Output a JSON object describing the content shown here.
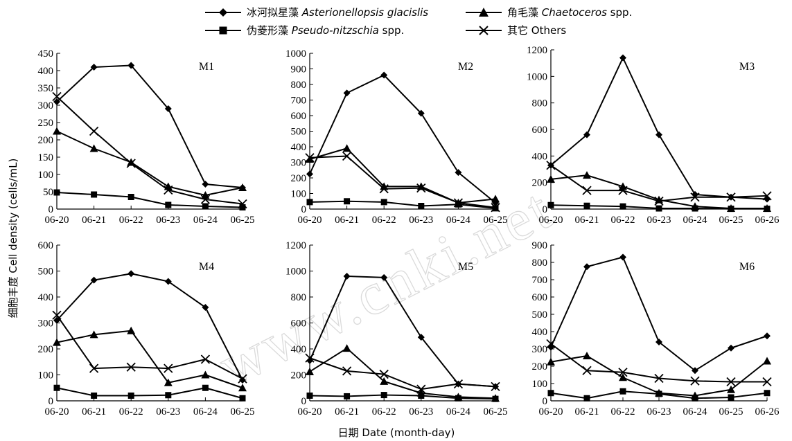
{
  "figure": {
    "ylabel": "细胞丰度 Cell density (cells/mL)",
    "xlabel": "日期 Date (month-day)",
    "legend": [
      {
        "zh": "冰河拟星藻",
        "latin": "Asterionellopsis glacislis",
        "suffix": "",
        "marker": "diamond"
      },
      {
        "zh": "角毛藻",
        "latin": "Chaetoceros",
        "suffix": " spp.",
        "marker": "triangle"
      },
      {
        "zh": "伪菱形藻",
        "latin": "Pseudo-nitzschia",
        "suffix": " spp.",
        "marker": "square"
      },
      {
        "zh": "其它",
        "latin": "",
        "suffix": "Others",
        "marker": "x"
      }
    ],
    "watermark": "www.cnki.net"
  },
  "chart_data": [
    {
      "type": "line",
      "title": "M1",
      "x": [
        "06-20",
        "06-21",
        "06-22",
        "06-23",
        "06-24",
        "06-25"
      ],
      "ylim": [
        0,
        450
      ],
      "yticks": [
        0,
        50,
        100,
        150,
        200,
        250,
        300,
        350,
        400,
        450
      ],
      "series": [
        {
          "name": "冰河拟星藻 Asterionellopsis glacislis",
          "marker": "diamond",
          "values": [
            310,
            410,
            415,
            290,
            72,
            62
          ]
        },
        {
          "name": "角毛藻 Chaetoceros spp.",
          "marker": "triangle",
          "values": [
            225,
            175,
            135,
            65,
            40,
            62
          ]
        },
        {
          "name": "伪菱形藻 Pseudo-nitzschia spp.",
          "marker": "square",
          "values": [
            48,
            42,
            35,
            12,
            8,
            5
          ]
        },
        {
          "name": "其它 Others",
          "marker": "x",
          "values": [
            325,
            225,
            132,
            55,
            28,
            15
          ]
        }
      ]
    },
    {
      "type": "line",
      "title": "M2",
      "x": [
        "06-20",
        "06-21",
        "06-22",
        "06-23",
        "06-24",
        "06-25"
      ],
      "ylim": [
        0,
        1000
      ],
      "yticks": [
        0,
        100,
        200,
        300,
        400,
        500,
        600,
        700,
        800,
        900,
        1000
      ],
      "series": [
        {
          "name": "冰河拟星藻 Asterionellopsis glacislis",
          "marker": "diamond",
          "values": [
            225,
            745,
            860,
            615,
            235,
            40
          ]
        },
        {
          "name": "角毛藻 Chaetoceros spp.",
          "marker": "triangle",
          "values": [
            320,
            390,
            145,
            145,
            40,
            65
          ]
        },
        {
          "name": "伪菱形藻 Pseudo-nitzschia spp.",
          "marker": "square",
          "values": [
            45,
            50,
            45,
            20,
            30,
            5
          ]
        },
        {
          "name": "其它 Others",
          "marker": "x",
          "values": [
            330,
            340,
            130,
            135,
            40,
            10
          ]
        }
      ]
    },
    {
      "type": "line",
      "title": "M3",
      "x": [
        "06-20",
        "06-21",
        "06-22",
        "06-23",
        "06-24",
        "06-25",
        "06-26"
      ],
      "ylim": [
        0,
        1200
      ],
      "yticks": [
        0,
        200,
        400,
        600,
        800,
        1000,
        1200
      ],
      "series": [
        {
          "name": "冰河拟星藻 Asterionellopsis glacislis",
          "marker": "diamond",
          "values": [
            330,
            560,
            1140,
            560,
            110,
            90,
            75
          ]
        },
        {
          "name": "角毛藻 Chaetoceros spp.",
          "marker": "triangle",
          "values": [
            225,
            255,
            170,
            70,
            20,
            5,
            5
          ]
        },
        {
          "name": "伪菱形藻 Pseudo-nitzschia spp.",
          "marker": "square",
          "values": [
            30,
            25,
            20,
            5,
            5,
            2,
            2
          ]
        },
        {
          "name": "其它 Others",
          "marker": "x",
          "values": [
            330,
            140,
            140,
            60,
            90,
            90,
            100
          ]
        }
      ]
    },
    {
      "type": "line",
      "title": "M4",
      "x": [
        "06-20",
        "06-21",
        "06-22",
        "06-23",
        "06-24",
        "06-25"
      ],
      "ylim": [
        0,
        600
      ],
      "yticks": [
        0,
        100,
        200,
        300,
        400,
        500,
        600
      ],
      "series": [
        {
          "name": "冰河拟星藻 Asterionellopsis glacislis",
          "marker": "diamond",
          "values": [
            310,
            465,
            490,
            460,
            360,
            80
          ]
        },
        {
          "name": "角毛藻 Chaetoceros spp.",
          "marker": "triangle",
          "values": [
            225,
            255,
            270,
            70,
            100,
            50
          ]
        },
        {
          "name": "伪菱形藻 Pseudo-nitzschia spp.",
          "marker": "square",
          "values": [
            50,
            20,
            20,
            22,
            50,
            10
          ]
        },
        {
          "name": "其它 Others",
          "marker": "x",
          "values": [
            330,
            125,
            130,
            125,
            160,
            85
          ]
        }
      ]
    },
    {
      "type": "line",
      "title": "M5",
      "x": [
        "06-20",
        "06-21",
        "06-22",
        "06-23",
        "06-24",
        "06-25"
      ],
      "ylim": [
        0,
        1200
      ],
      "yticks": [
        0,
        200,
        400,
        600,
        800,
        1000,
        1200
      ],
      "series": [
        {
          "name": "冰河拟星藻 Asterionellopsis glacislis",
          "marker": "diamond",
          "values": [
            310,
            960,
            950,
            490,
            130,
            110
          ]
        },
        {
          "name": "角毛藻 Chaetoceros spp.",
          "marker": "triangle",
          "values": [
            225,
            405,
            150,
            60,
            30,
            20
          ]
        },
        {
          "name": "伪菱形藻 Pseudo-nitzschia spp.",
          "marker": "square",
          "values": [
            40,
            35,
            45,
            40,
            20,
            15
          ]
        },
        {
          "name": "其它 Others",
          "marker": "x",
          "values": [
            330,
            230,
            205,
            90,
            130,
            110
          ]
        }
      ]
    },
    {
      "type": "line",
      "title": "M6",
      "x": [
        "06-20",
        "06-21",
        "06-22",
        "06-23",
        "06-24",
        "06-25",
        "06-26"
      ],
      "ylim": [
        0,
        900
      ],
      "yticks": [
        0,
        100,
        200,
        300,
        400,
        500,
        600,
        700,
        800,
        900
      ],
      "series": [
        {
          "name": "冰河拟星藻 Asterionellopsis glacislis",
          "marker": "diamond",
          "values": [
            310,
            775,
            830,
            340,
            175,
            305,
            375
          ]
        },
        {
          "name": "角毛藻 Chaetoceros spp.",
          "marker": "triangle",
          "values": [
            225,
            260,
            135,
            45,
            30,
            65,
            230
          ]
        },
        {
          "name": "伪菱形藻 Pseudo-nitzschia spp.",
          "marker": "square",
          "values": [
            45,
            15,
            55,
            40,
            15,
            20,
            45
          ]
        },
        {
          "name": "其它 Others",
          "marker": "x",
          "values": [
            330,
            175,
            165,
            130,
            115,
            110,
            110
          ]
        }
      ]
    }
  ]
}
